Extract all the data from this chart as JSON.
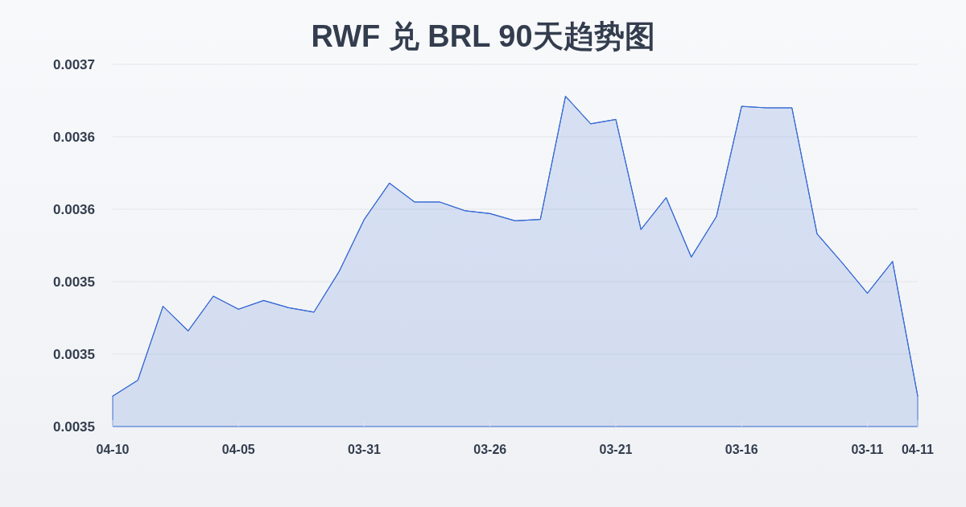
{
  "chart_data": {
    "type": "area",
    "title": "RWF 兑 BRL 90天趋势图",
    "categories": [
      "04-10",
      null,
      null,
      null,
      null,
      "04-05",
      null,
      null,
      null,
      null,
      "03-31",
      null,
      null,
      null,
      null,
      "03-26",
      null,
      null,
      null,
      null,
      "03-21",
      null,
      null,
      null,
      null,
      "03-16",
      null,
      null,
      null,
      null,
      "03-11",
      null,
      "04-11"
    ],
    "series": [
      {
        "color": "#3a6cd4",
        "values": [
          0.003471,
          0.003482,
          0.003533,
          0.003516,
          0.00354,
          0.003531,
          0.003537,
          0.003532,
          0.003529,
          0.003557,
          0.003593,
          0.003618,
          0.003605,
          0.003605,
          0.003599,
          0.003597,
          0.003592,
          0.003593,
          0.003678,
          0.003659,
          0.003662,
          0.003586,
          0.003608,
          0.003567,
          0.003595,
          0.003671,
          0.00367,
          0.00367,
          0.003583,
          0.003563,
          0.003542,
          0.003564,
          0.003471
        ]
      }
    ],
    "ylim": [
      0.00345,
      0.0037
    ],
    "yticks": [
      {
        "value": 0.00345,
        "label": "0.0035"
      },
      {
        "value": 0.0035,
        "label": "0.0035"
      },
      {
        "value": 0.00355,
        "label": "0.0035"
      },
      {
        "value": 0.0036,
        "label": "0.0036"
      },
      {
        "value": 0.00365,
        "label": "0.0036"
      },
      {
        "value": 0.0037,
        "label": "0.0037"
      }
    ],
    "grid": "y"
  }
}
